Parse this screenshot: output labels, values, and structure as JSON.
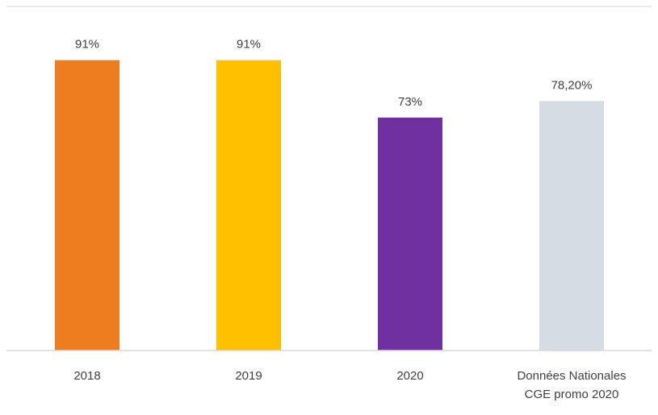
{
  "chart_data": {
    "type": "bar",
    "title": "",
    "xlabel": "",
    "ylabel": "",
    "ylim": [
      0,
      100
    ],
    "grid": false,
    "legend": "none",
    "categories": [
      [
        "2018"
      ],
      [
        "2019"
      ],
      [
        "2020"
      ],
      [
        "Données Nationales",
        "CGE promo 2020"
      ]
    ],
    "values": [
      91,
      91,
      73,
      78.2
    ],
    "value_labels": [
      "91%",
      "91%",
      "73%",
      "78,20%"
    ],
    "bar_colors": [
      "#ED7D1F",
      "#FFC000",
      "#7030A0",
      "#D6DCE4"
    ],
    "axis_color": "#D9D9D9"
  }
}
